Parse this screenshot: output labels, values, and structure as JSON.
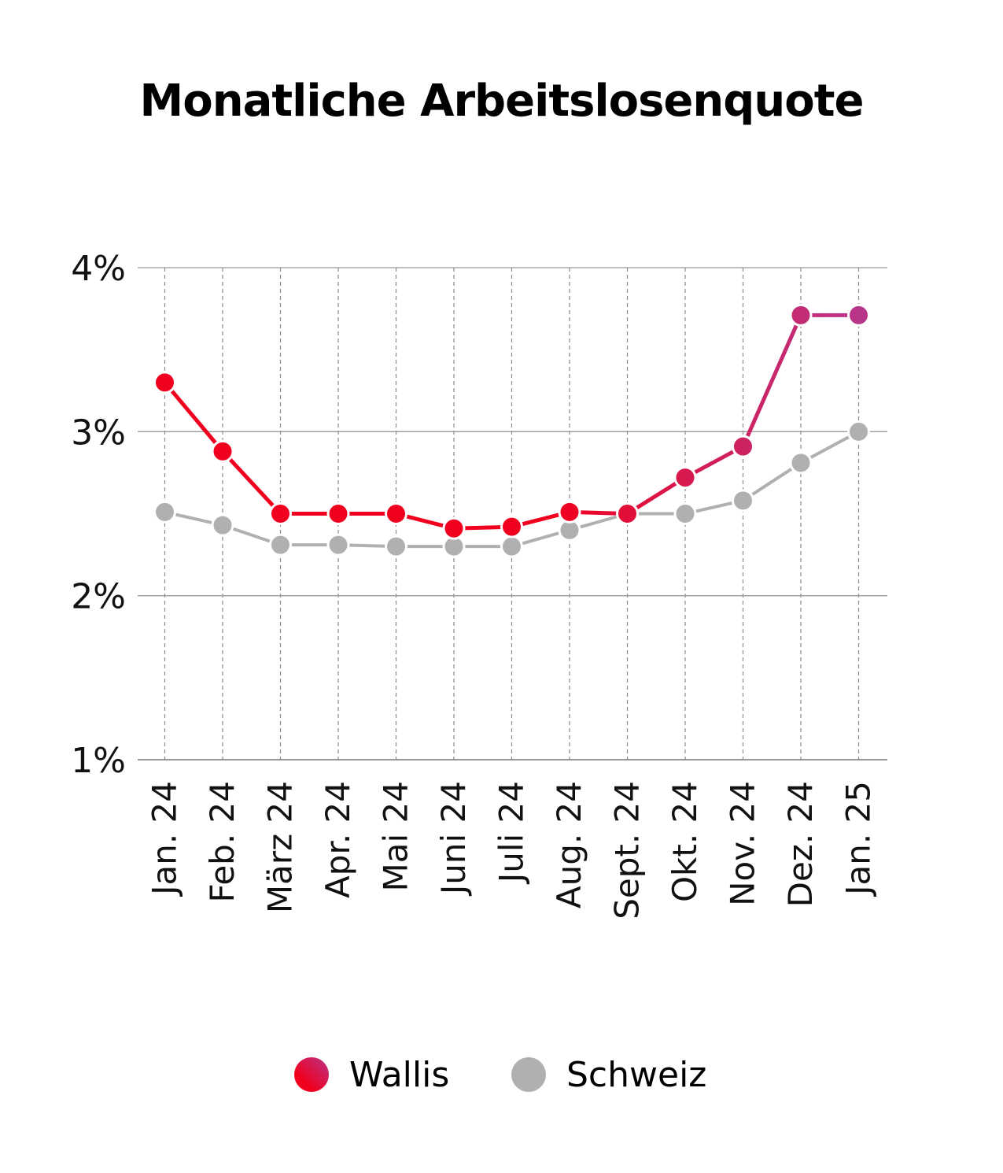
{
  "chart_data": {
    "type": "line",
    "title": "Monatliche Arbeitslosenquote",
    "xlabel": "",
    "ylabel": "",
    "categories": [
      "Jan. 24",
      "Feb. 24",
      "März 24",
      "Apr. 24",
      "Mai 24",
      "Juni 24",
      "Juli 24",
      "Aug. 24",
      "Sept. 24",
      "Okt. 24",
      "Nov. 24",
      "Dez. 24",
      "Jan. 25"
    ],
    "y_ticks": [
      "1%",
      "2%",
      "3%",
      "4%"
    ],
    "ylim": [
      1,
      4
    ],
    "grid": true,
    "legend_position": "bottom",
    "series": [
      {
        "name": "Wallis",
        "color_start": "#f0001e",
        "color_end": "#b8368a",
        "values": [
          3.3,
          2.88,
          2.5,
          2.5,
          2.5,
          2.41,
          2.42,
          2.51,
          2.5,
          2.72,
          2.91,
          3.71,
          3.71
        ]
      },
      {
        "name": "Schweiz",
        "color": "#b0b0b0",
        "values": [
          2.51,
          2.43,
          2.31,
          2.31,
          2.3,
          2.3,
          2.3,
          2.4,
          2.5,
          2.5,
          2.58,
          2.81,
          3.0
        ]
      }
    ]
  }
}
